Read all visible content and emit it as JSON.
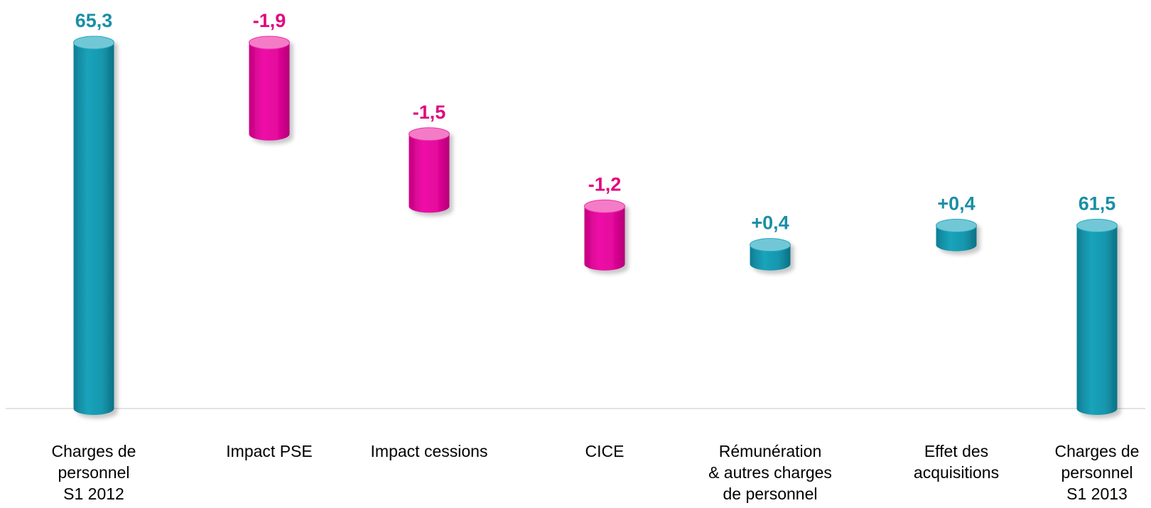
{
  "chart_data": {
    "type": "waterfall",
    "categories": [
      "Charges de\npersonnel\nS1 2012",
      "Impact PSE",
      "Impact cessions",
      "CICE",
      "Rémunération\n& autres charges\nde personnel",
      "Effet des\nacquisitions",
      "Charges de\npersonnel\nS1 2013"
    ],
    "values": [
      65.3,
      -1.9,
      -1.5,
      -1.2,
      0.4,
      0.4,
      61.5
    ],
    "data_labels": [
      "65,3",
      "-1,9",
      "-1,5",
      "-1,2",
      "+0,4",
      "+0,4",
      "61,5"
    ],
    "kinds": [
      "total",
      "delta",
      "delta",
      "delta",
      "delta",
      "delta",
      "total"
    ],
    "ylim": [
      57.7,
      65.3
    ],
    "title": "",
    "xlabel": "",
    "ylabel": "",
    "grid": false,
    "legend": "none",
    "colors": {
      "total": "#1797ae",
      "increase": "#1797ae",
      "decrease": "#e4079c",
      "label_positive": "#1a8fa6",
      "label_negative": "#e0077f",
      "axis": "#d9d9d9"
    }
  }
}
